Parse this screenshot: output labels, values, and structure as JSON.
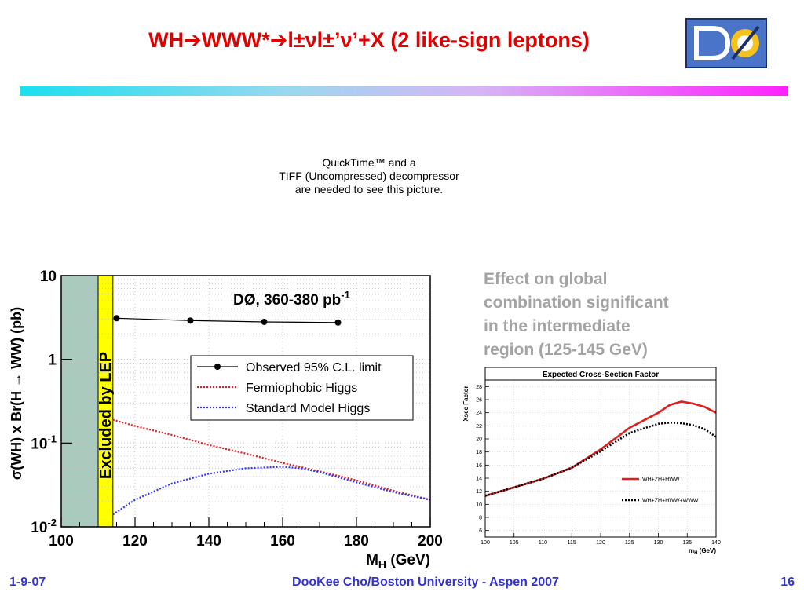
{
  "slide": {
    "title_prefix": "WH",
    "title_formula": "WWW*",
    "title_decay": "l±νl±’ν’+X",
    "title_suffix": "(2 like-sign leptons)",
    "placeholder_lines": [
      "QuickTime™ and a",
      "TIFF (Uncompressed) decompressor",
      "are needed to see this picture."
    ],
    "annotation_lines": [
      "Effect on global",
      "combination significant",
      "in the intermediate",
      "region (125-145 GeV)"
    ],
    "footer_left": "1-9-07",
    "footer_center": "DooKee Cho/Boston University - Aspen 2007",
    "footer_right": "16",
    "colors": {
      "title": "#e00000",
      "footer": "#3333cc",
      "annotation": "#a3a3a3"
    }
  },
  "chart_data": [
    {
      "type": "line",
      "experiment_label": "DØ, 360-380 pb",
      "luminosity_exponent": "-1",
      "xlabel": "M",
      "xlabel_sub": "H",
      "xlabel_unit": " (GeV)",
      "ylabel": "σ(WH) x Br(H → WW) (pb)",
      "yscale": "log",
      "xlim": [
        100,
        200
      ],
      "ylim": [
        0.01,
        10
      ],
      "x_ticks": [
        100,
        120,
        140,
        160,
        180,
        200
      ],
      "y_ticks": [
        {
          "base": "10",
          "exp": "-2",
          "value": 0.01
        },
        {
          "base": "10",
          "exp": "-1",
          "value": 0.1
        },
        {
          "base": "1",
          "exp": "",
          "value": 1
        },
        {
          "base": "10",
          "exp": "",
          "value": 10
        }
      ],
      "excluded_region": {
        "label": "Excluded by LEP",
        "xmax": 110,
        "band_xmax": 114,
        "fill": "#a9cabc",
        "band_fill": "#ffff00"
      },
      "legend_position": "right-middle",
      "series": [
        {
          "name": "Observed 95% C.L. limit",
          "style": "solid-markers",
          "color": "#000000",
          "x": [
            115,
            135,
            155,
            175
          ],
          "y": [
            3.1,
            2.9,
            2.8,
            2.75
          ]
        },
        {
          "name": "Fermiophobic Higgs",
          "style": "dotted",
          "color": "#e02020",
          "x": [
            114,
            120,
            130,
            140,
            150,
            160,
            170,
            180,
            190,
            200
          ],
          "y": [
            0.19,
            0.16,
            0.125,
            0.095,
            0.075,
            0.058,
            0.046,
            0.036,
            0.027,
            0.021
          ]
        },
        {
          "name": "Standard Model Higgs",
          "style": "dotted",
          "color": "#3333ff",
          "x": [
            114,
            120,
            130,
            140,
            150,
            160,
            165,
            170,
            180,
            190,
            200
          ],
          "y": [
            0.014,
            0.021,
            0.033,
            0.043,
            0.05,
            0.052,
            0.05,
            0.045,
            0.034,
            0.026,
            0.021
          ]
        }
      ]
    },
    {
      "type": "line",
      "title": "Expected Cross-Section Factor",
      "ylabel": "Xsec Factor",
      "xlabel": "m",
      "xlabel_sub": "H",
      "xlabel_unit": " (GeV)",
      "xlim": [
        100,
        140
      ],
      "ylim": [
        5,
        29
      ],
      "x_ticks": [
        100,
        105,
        110,
        115,
        120,
        125,
        130,
        135,
        140
      ],
      "y_ticks": [
        6,
        8,
        10,
        12,
        14,
        16,
        18,
        20,
        22,
        24,
        26,
        28
      ],
      "legend_position": "bottom-right",
      "series": [
        {
          "name": "WH+ZH+HWW",
          "color": "#e02020",
          "style": "solid",
          "x": [
            100,
            105,
            110,
            115,
            120,
            125,
            130,
            132,
            134,
            136,
            138,
            140
          ],
          "y": [
            11.3,
            12.6,
            13.9,
            15.6,
            18.4,
            21.7,
            24.0,
            25.2,
            25.7,
            25.4,
            24.9,
            24.0
          ]
        },
        {
          "name": "WH+ZH+HWW+WWW",
          "color": "#000000",
          "style": "dotted",
          "x": [
            100,
            105,
            110,
            115,
            120,
            125,
            130,
            132,
            134,
            136,
            138,
            140
          ],
          "y": [
            11.3,
            12.6,
            13.9,
            15.6,
            18.1,
            20.9,
            22.3,
            22.5,
            22.4,
            22.1,
            21.5,
            20.3
          ]
        }
      ]
    }
  ]
}
